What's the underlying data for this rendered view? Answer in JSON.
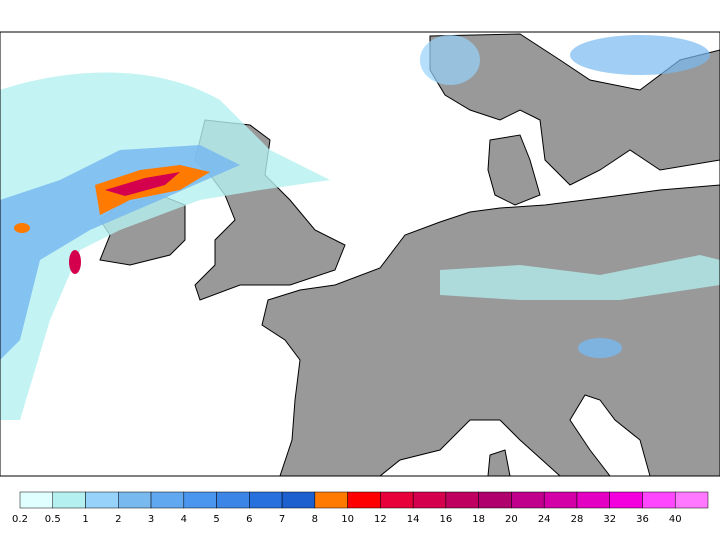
{
  "legend": {
    "labels": [
      "0.2",
      "0.5",
      "1",
      "2",
      "3",
      "4",
      "5",
      "6",
      "7",
      "8",
      "10",
      "12",
      "14",
      "16",
      "18",
      "20",
      "24",
      "28",
      "32",
      "36",
      "40"
    ],
    "colors": [
      "#e0ffff",
      "#b4f0f0",
      "#96d2fa",
      "#78b9f0",
      "#60a8f0",
      "#4a96ef",
      "#3a85e6",
      "#2870dd",
      "#1c5fcf",
      "#ff7a00",
      "#ff0000",
      "#e8003a",
      "#d4004e",
      "#c00060",
      "#b0006e",
      "#c0008c",
      "#d200a6",
      "#e400c2",
      "#f400de",
      "#ff46ff",
      "#ff78ff"
    ]
  }
}
